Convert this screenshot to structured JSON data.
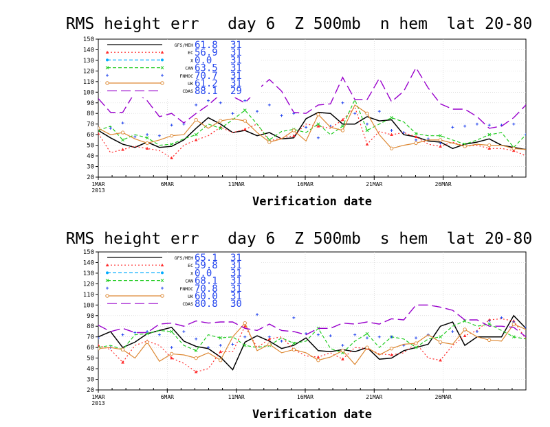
{
  "chart_data": [
    {
      "type": "line",
      "title": "RMS height err   day 6  Z 500mb  n hem  lat 20-80",
      "xlabel": "Verification date",
      "ylabel": "",
      "ylim": [
        20,
        150
      ],
      "yticks": [
        20,
        30,
        40,
        50,
        60,
        70,
        80,
        90,
        100,
        110,
        120,
        130,
        140,
        150
      ],
      "xticks": [
        {
          "day": 1,
          "label": "1MAR",
          "sublabel": "2013"
        },
        {
          "day": 6,
          "label": "6MAR",
          "sublabel": ""
        },
        {
          "day": 11,
          "label": "11MAR",
          "sublabel": ""
        },
        {
          "day": 16,
          "label": "16MAR",
          "sublabel": ""
        },
        {
          "day": 21,
          "label": "21MAR",
          "sublabel": ""
        },
        {
          "day": 26,
          "label": "26MAR",
          "sublabel": ""
        }
      ],
      "xlim": [
        1,
        32
      ],
      "grid": true,
      "legend_position": "top-left",
      "series": [
        {
          "name": "GFS/MEH",
          "mean": "61.8",
          "count": "31",
          "color": "#000000",
          "style": "solid",
          "marker": "none",
          "values": [
            64,
            57,
            51,
            48,
            53,
            48,
            49,
            55,
            66,
            76,
            70,
            62,
            64,
            59,
            62,
            56,
            57,
            75,
            81,
            80,
            70,
            70,
            77,
            73,
            74,
            60,
            58,
            54,
            53,
            47,
            51,
            53,
            56,
            50,
            48,
            46
          ]
        },
        {
          "name": "EC",
          "mean": "56.9",
          "count": "31",
          "color": "#ff2a2a",
          "style": "dotted",
          "marker": "triangle",
          "values": [
            61,
            43,
            46,
            49,
            47,
            45,
            38,
            50,
            55,
            59,
            67,
            62,
            65,
            70,
            54,
            57,
            59,
            70,
            68,
            66,
            74,
            86,
            51,
            63,
            60,
            62,
            58,
            51,
            49,
            53,
            49,
            50,
            47,
            47,
            45,
            40
          ]
        },
        {
          "name": "X",
          "mean": "0.0",
          "count": "31",
          "color": "#00aaff",
          "style": "dashed",
          "marker": "circle",
          "values": []
        },
        {
          "name": "CAN",
          "mean": "63.5",
          "count": "31",
          "color": "#22cc22",
          "style": "dashed",
          "marker": "x",
          "values": [
            64,
            68,
            55,
            60,
            57,
            50,
            51,
            56,
            60,
            70,
            66,
            74,
            83,
            70,
            55,
            63,
            65,
            62,
            70,
            60,
            68,
            93,
            64,
            70,
            76,
            72,
            61,
            59,
            59,
            55,
            51,
            55,
            60,
            62,
            48,
            60
          ]
        },
        {
          "name": "FNMOC",
          "mean": "70.7",
          "count": "31",
          "color": "#2244ee",
          "style": "none",
          "marker": "plus",
          "values": [
            65,
            66,
            71,
            58,
            60,
            59,
            69,
            70,
            88,
            92,
            90,
            80,
            92,
            82,
            88,
            78,
            80,
            67,
            57,
            68,
            90,
            80,
            70,
            82,
            64,
            62,
            55,
            56,
            52,
            67,
            68,
            70,
            69,
            69,
            70,
            60
          ]
        },
        {
          "name": "UK",
          "mean": "61.2",
          "count": "31",
          "color": "#dd8833",
          "style": "solid",
          "marker": "circle-open",
          "values": [
            66,
            60,
            62,
            56,
            52,
            55,
            59,
            60,
            74,
            66,
            73,
            75,
            73,
            62,
            53,
            56,
            64,
            54,
            79,
            67,
            64,
            88,
            80,
            60,
            47,
            50,
            52,
            55,
            55,
            52,
            49,
            51,
            50,
            50,
            47,
            46
          ]
        },
        {
          "name": "CDAS",
          "mean": "88.1",
          "count": "29",
          "color": "#9900cc",
          "style": "longdash",
          "marker": "none",
          "values": [
            94,
            81,
            81,
            100,
            92,
            77,
            80,
            71,
            80,
            88,
            98,
            96,
            90,
            102,
            112,
            101,
            81,
            80,
            88,
            89,
            114,
            93,
            93,
            113,
            91,
            101,
            123,
            104,
            89,
            84,
            84,
            77,
            66,
            68,
            76,
            88
          ]
        }
      ]
    },
    {
      "type": "line",
      "title": "RMS height err   day 6  Z 500mb  s hem  lat 20-80",
      "xlabel": "Verification date",
      "ylabel": "",
      "ylim": [
        20,
        150
      ],
      "yticks": [
        20,
        30,
        40,
        50,
        60,
        70,
        80,
        90,
        100,
        110,
        120,
        130,
        140,
        150
      ],
      "xticks": [
        {
          "day": 1,
          "label": "1MAR",
          "sublabel": "2013"
        },
        {
          "day": 6,
          "label": "6MAR",
          "sublabel": ""
        },
        {
          "day": 11,
          "label": "11MAR",
          "sublabel": ""
        },
        {
          "day": 16,
          "label": "16MAR",
          "sublabel": ""
        },
        {
          "day": 21,
          "label": "21MAR",
          "sublabel": ""
        },
        {
          "day": 26,
          "label": "26MAR",
          "sublabel": ""
        }
      ],
      "xlim": [
        1,
        32
      ],
      "grid": true,
      "legend_position": "top-left",
      "series": [
        {
          "name": "GFS/MEH",
          "mean": "65.1",
          "count": "31",
          "color": "#000000",
          "style": "solid",
          "marker": "none",
          "values": [
            70,
            75,
            60,
            65,
            73,
            76,
            79,
            66,
            61,
            59,
            51,
            39,
            65,
            71,
            66,
            59,
            62,
            69,
            57,
            56,
            58,
            56,
            60,
            49,
            50,
            57,
            60,
            63,
            80,
            84,
            62,
            70,
            70,
            70,
            90,
            78
          ]
        },
        {
          "name": "EC",
          "mean": "59.8",
          "count": "31",
          "color": "#ff2a2a",
          "style": "dotted",
          "marker": "triangle",
          "values": [
            62,
            58,
            46,
            62,
            66,
            62,
            50,
            45,
            37,
            40,
            56,
            56,
            80,
            60,
            68,
            70,
            58,
            52,
            51,
            55,
            49,
            60,
            59,
            54,
            53,
            55,
            64,
            50,
            48,
            62,
            71,
            76,
            86,
            87,
            85,
            68
          ]
        },
        {
          "name": "X",
          "mean": "0.0",
          "count": "31",
          "color": "#00aaff",
          "style": "dashed",
          "marker": "circle",
          "values": []
        },
        {
          "name": "CAN",
          "mean": "68.1",
          "count": "31",
          "color": "#22cc22",
          "style": "dashed",
          "marker": "x",
          "values": [
            60,
            62,
            58,
            72,
            73,
            76,
            75,
            62,
            57,
            72,
            69,
            70,
            62,
            60,
            62,
            69,
            64,
            66,
            78,
            59,
            55,
            66,
            73,
            60,
            70,
            68,
            60,
            68,
            70,
            80,
            85,
            80,
            82,
            76,
            70,
            68
          ]
        },
        {
          "name": "FNMOC",
          "mean": "70.8",
          "count": "31",
          "color": "#2244ee",
          "style": "none",
          "marker": "plus",
          "values": [
            69,
            60,
            72,
            74,
            75,
            72,
            60,
            75,
            68,
            60,
            62,
            63,
            70,
            91,
            70,
            66,
            88,
            73,
            72,
            71,
            62,
            72,
            69,
            70,
            70,
            62,
            69,
            72,
            64,
            75,
            76,
            75,
            85,
            88,
            84,
            79
          ]
        },
        {
          "name": "UK",
          "mean": "60.0",
          "count": "31",
          "color": "#dd8833",
          "style": "solid",
          "marker": "circle-open",
          "values": [
            59,
            60,
            58,
            50,
            65,
            47,
            54,
            53,
            50,
            55,
            48,
            70,
            83,
            57,
            63,
            55,
            58,
            55,
            48,
            51,
            57,
            44,
            60,
            53,
            59,
            63,
            64,
            72,
            65,
            63,
            77,
            70,
            67,
            66,
            82,
            77
          ]
        },
        {
          "name": "CDAS",
          "mean": "80.8",
          "count": "30",
          "color": "#9900cc",
          "style": "longdash",
          "marker": "none",
          "values": [
            81,
            75,
            78,
            74,
            74,
            82,
            83,
            80,
            85,
            83,
            84,
            84,
            78,
            76,
            82,
            76,
            75,
            72,
            78,
            78,
            83,
            82,
            84,
            82,
            87,
            86,
            100,
            100,
            98,
            95,
            86,
            86,
            80,
            80,
            79,
            70
          ]
        }
      ]
    }
  ]
}
